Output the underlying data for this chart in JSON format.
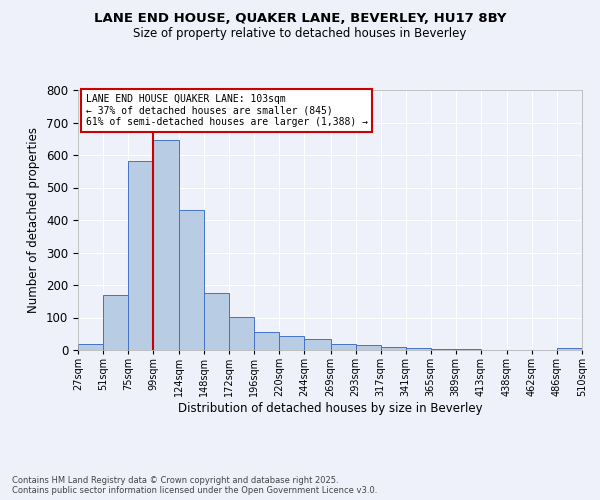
{
  "title1": "LANE END HOUSE, QUAKER LANE, BEVERLEY, HU17 8BY",
  "title2": "Size of property relative to detached houses in Beverley",
  "xlabel": "Distribution of detached houses by size in Beverley",
  "ylabel": "Number of detached properties",
  "bins": [
    27,
    51,
    75,
    99,
    124,
    148,
    172,
    196,
    220,
    244,
    269,
    293,
    317,
    341,
    365,
    389,
    413,
    438,
    462,
    486,
    510
  ],
  "counts": [
    20,
    168,
    583,
    645,
    430,
    175,
    103,
    55,
    42,
    33,
    20,
    15,
    10,
    5,
    3,
    2,
    1,
    0,
    0,
    5
  ],
  "bar_color": "#b8cce4",
  "bar_edge_color": "#4472c4",
  "vline_x": 99,
  "vline_color": "#cc0000",
  "annotation_title": "LANE END HOUSE QUAKER LANE: 103sqm",
  "annotation_line2": "← 37% of detached houses are smaller (845)",
  "annotation_line3": "61% of semi-detached houses are larger (1,388) →",
  "annotation_box_color": "#cc0000",
  "ylim": [
    0,
    800
  ],
  "yticks": [
    0,
    100,
    200,
    300,
    400,
    500,
    600,
    700,
    800
  ],
  "tick_labels": [
    "27sqm",
    "51sqm",
    "75sqm",
    "99sqm",
    "124sqm",
    "148sqm",
    "172sqm",
    "196sqm",
    "220sqm",
    "244sqm",
    "269sqm",
    "293sqm",
    "317sqm",
    "341sqm",
    "365sqm",
    "389sqm",
    "413sqm",
    "438sqm",
    "462sqm",
    "486sqm",
    "510sqm"
  ],
  "footer1": "Contains HM Land Registry data © Crown copyright and database right 2025.",
  "footer2": "Contains public sector information licensed under the Open Government Licence v3.0.",
  "bg_color": "#eef1fa",
  "grid_color": "#ffffff"
}
